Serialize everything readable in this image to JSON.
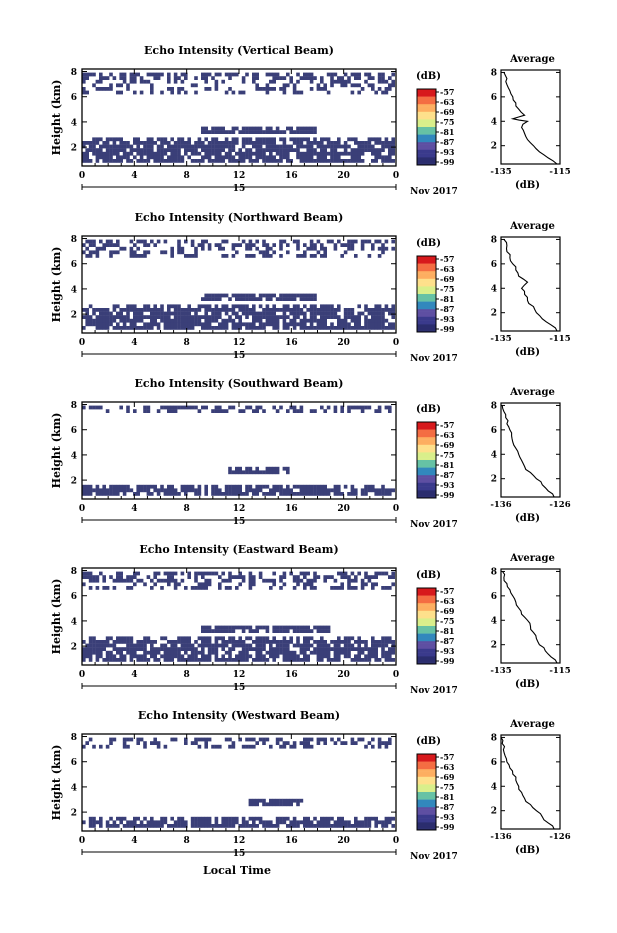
{
  "colorbar": {
    "unit": "(dB)",
    "ticks": [
      "-57",
      "-63",
      "-69",
      "-75",
      "-81",
      "-87",
      "-93",
      "-99"
    ],
    "colors": [
      "#d7191c",
      "#f46d43",
      "#fdae61",
      "#fee08b",
      "#d9ef8b",
      "#66c2a5",
      "#3288bd",
      "#5e4fa2",
      "#3a3a8c",
      "#2b2d6e"
    ]
  },
  "echo_color": "#3a3f78",
  "date_day": "15",
  "date_month_year": "Nov 2017",
  "xlabel_bottom": "Local Time",
  "panels": [
    {
      "title": "Echo Intensity (Vertical Beam)",
      "ylabel": "Height (km)",
      "yticks": [
        "2",
        "4",
        "6",
        "8"
      ],
      "xticks": [
        "0",
        "4",
        "8",
        "12",
        "16",
        "20",
        "0"
      ],
      "avg": {
        "title": "Average",
        "xlabel": "(dB)",
        "xticks": [
          "-135",
          "-115"
        ],
        "yticks": [
          "2",
          "4",
          "6",
          "8"
        ]
      }
    },
    {
      "title": "Echo Intensity (Northward Beam)",
      "ylabel": "Height (km)",
      "yticks": [
        "2",
        "4",
        "6",
        "8"
      ],
      "xticks": [
        "0",
        "4",
        "8",
        "12",
        "16",
        "20",
        "0"
      ],
      "avg": {
        "title": "Average",
        "xlabel": "(dB)",
        "xticks": [
          "-135",
          "-115"
        ],
        "yticks": [
          "2",
          "4",
          "6",
          "8"
        ]
      }
    },
    {
      "title": "Echo Intensity (Southward Beam)",
      "ylabel": "Height (km)",
      "yticks": [
        "2",
        "4",
        "6",
        "8"
      ],
      "xticks": [
        "0",
        "4",
        "8",
        "12",
        "16",
        "20",
        "0"
      ],
      "avg": {
        "title": "Average",
        "xlabel": "(dB)",
        "xticks": [
          "-136",
          "-126"
        ],
        "yticks": [
          "2",
          "4",
          "6",
          "8"
        ]
      }
    },
    {
      "title": "Echo Intensity (Eastward Beam)",
      "ylabel": "Height (km)",
      "yticks": [
        "2",
        "4",
        "6",
        "8"
      ],
      "xticks": [
        "0",
        "4",
        "8",
        "12",
        "16",
        "20",
        "0"
      ],
      "avg": {
        "title": "Average",
        "xlabel": "(dB)",
        "xticks": [
          "-135",
          "-115"
        ],
        "yticks": [
          "2",
          "4",
          "6",
          "8"
        ]
      }
    },
    {
      "title": "Echo Intensity (Westward Beam)",
      "ylabel": "Height (km)",
      "yticks": [
        "2",
        "4",
        "6",
        "8"
      ],
      "xticks": [
        "0",
        "4",
        "8",
        "12",
        "16",
        "20",
        "0"
      ],
      "avg": {
        "title": "Average",
        "xlabel": "(dB)",
        "xticks": [
          "-136",
          "-126"
        ],
        "yticks": [
          "2",
          "4",
          "6",
          "8"
        ]
      }
    }
  ],
  "chart_data": [
    {
      "type": "heatmap",
      "title": "Echo Intensity (Vertical Beam)",
      "ylabel": "Height (km)",
      "xlim": [
        0,
        24
      ],
      "ylim": [
        0.5,
        8.2
      ],
      "echo_regions": [
        {
          "x": [
            0,
            24
          ],
          "y": [
            0.5,
            3.0
          ]
        },
        {
          "x": [
            9,
            18
          ],
          "y": [
            3.0,
            3.8
          ]
        },
        {
          "x": [
            0,
            24
          ],
          "y": [
            6.2,
            8.0
          ]
        }
      ],
      "average_profile": {
        "xlim": [
          -135,
          -115
        ],
        "ylim": [
          0.5,
          8.2
        ],
        "height": [
          0.5,
          1,
          1.5,
          2,
          2.5,
          3,
          3.5,
          4,
          4.2,
          4.5,
          5,
          5.5,
          6,
          6.5,
          7,
          7.5,
          8
        ],
        "value": [
          -116,
          -119,
          -122,
          -124,
          -126,
          -127,
          -128,
          -126,
          -131,
          -127,
          -129,
          -130,
          -131,
          -132,
          -133,
          -133,
          -134
        ]
      }
    },
    {
      "type": "heatmap",
      "title": "Echo Intensity (Northward Beam)",
      "ylabel": "Height (km)",
      "xlim": [
        0,
        24
      ],
      "ylim": [
        0.5,
        8.2
      ],
      "echo_regions": [
        {
          "x": [
            0,
            24
          ],
          "y": [
            0.5,
            3.0
          ]
        },
        {
          "x": [
            9,
            18
          ],
          "y": [
            3.0,
            3.8
          ]
        },
        {
          "x": [
            0,
            24
          ],
          "y": [
            6.3,
            8.0
          ]
        }
      ],
      "average_profile": {
        "xlim": [
          -135,
          -115
        ],
        "ylim": [
          0.5,
          8.2
        ],
        "height": [
          0.5,
          1,
          1.5,
          2,
          2.5,
          3,
          3.5,
          4,
          4.5,
          5,
          5.5,
          6,
          6.5,
          7,
          7.5,
          8
        ],
        "value": [
          -116,
          -118,
          -121,
          -123,
          -124,
          -126,
          -127,
          -128,
          -126,
          -129,
          -130,
          -131,
          -132,
          -133,
          -133,
          -134
        ]
      }
    },
    {
      "type": "heatmap",
      "title": "Echo Intensity (Southward Beam)",
      "ylabel": "Height (km)",
      "xlim": [
        0,
        24
      ],
      "ylim": [
        0.5,
        8.2
      ],
      "echo_regions": [
        {
          "x": [
            0,
            24
          ],
          "y": [
            0.5,
            1.9
          ]
        },
        {
          "x": [
            11,
            16
          ],
          "y": [
            2.5,
            3.2
          ]
        },
        {
          "x": [
            0,
            24
          ],
          "y": [
            7.2,
            8.0
          ]
        }
      ],
      "average_profile": {
        "xlim": [
          -136,
          -126
        ],
        "ylim": [
          0.5,
          8.2
        ],
        "height": [
          0.5,
          1,
          1.5,
          2,
          2.5,
          3,
          3.5,
          4,
          4.5,
          5,
          5.5,
          6,
          6.5,
          7,
          7.5,
          8
        ],
        "value": [
          -127,
          -128,
          -129,
          -130,
          -131,
          -132,
          -132.5,
          -133,
          -133.5,
          -134,
          -134.2,
          -134.5,
          -135,
          -135.2,
          -135.5,
          -135.8
        ]
      }
    },
    {
      "type": "heatmap",
      "title": "Echo Intensity (Eastward Beam)",
      "ylabel": "Height (km)",
      "xlim": [
        0,
        24
      ],
      "ylim": [
        0.5,
        8.2
      ],
      "echo_regions": [
        {
          "x": [
            0,
            24
          ],
          "y": [
            0.5,
            3.0
          ]
        },
        {
          "x": [
            9,
            19
          ],
          "y": [
            3.0,
            3.8
          ]
        },
        {
          "x": [
            0,
            24
          ],
          "y": [
            6.3,
            8.0
          ]
        }
      ],
      "average_profile": {
        "xlim": [
          -135,
          -115
        ],
        "ylim": [
          0.5,
          8.2
        ],
        "height": [
          0.5,
          1,
          1.5,
          2,
          2.5,
          3,
          3.5,
          4,
          4.5,
          5,
          5.5,
          6,
          6.5,
          7,
          7.5,
          8
        ],
        "value": [
          -116,
          -118,
          -120,
          -122,
          -123,
          -124,
          -125,
          -126,
          -128,
          -129,
          -130,
          -131,
          -132,
          -133,
          -134,
          -134.5
        ]
      }
    },
    {
      "type": "heatmap",
      "title": "Echo Intensity (Westward Beam)",
      "ylabel": "Height (km)",
      "xlim": [
        0,
        24
      ],
      "ylim": [
        0.5,
        8.2
      ],
      "echo_regions": [
        {
          "x": [
            0,
            24
          ],
          "y": [
            0.5,
            1.8
          ]
        },
        {
          "x": [
            12.5,
            17
          ],
          "y": [
            2.3,
            3.2
          ]
        },
        {
          "x": [
            0,
            24
          ],
          "y": [
            7.0,
            8.0
          ]
        }
      ],
      "average_profile": {
        "xlim": [
          -136,
          -126
        ],
        "ylim": [
          0.5,
          8.2
        ],
        "height": [
          0.5,
          1,
          1.5,
          2,
          2.5,
          3,
          3.5,
          4,
          4.5,
          5,
          5.5,
          6,
          6.5,
          7,
          7.5,
          8
        ],
        "value": [
          -127,
          -128,
          -129,
          -130,
          -131,
          -132,
          -132.5,
          -133,
          -133.5,
          -134,
          -134.5,
          -135,
          -135.3,
          -135.6,
          -135.8,
          -136
        ]
      }
    }
  ]
}
